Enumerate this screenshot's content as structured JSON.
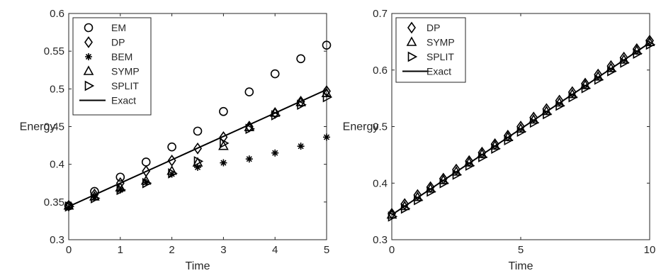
{
  "chart_data": [
    {
      "type": "scatter",
      "xlabel": "Time",
      "ylabel": "Energy",
      "xlim": [
        0,
        5
      ],
      "ylim": [
        0.3,
        0.6
      ],
      "xticks": [
        0,
        1,
        2,
        3,
        4,
        5
      ],
      "yticks": [
        0.3,
        0.35,
        0.4,
        0.45,
        0.5,
        0.55,
        0.6
      ],
      "xtick_labels": [
        "0",
        "1",
        "2",
        "3",
        "4",
        "5"
      ],
      "ytick_labels": [
        "0.3",
        "0.35",
        "0.4",
        "0.45",
        "0.5",
        "0.55",
        "0.6"
      ],
      "legend_position": "top-left",
      "grid": false,
      "series": [
        {
          "name": "EM",
          "marker": "circle",
          "x": [
            0,
            0.5,
            1.0,
            1.5,
            2.0,
            2.5,
            3.0,
            3.5,
            4.0,
            4.5,
            5.0
          ],
          "y": [
            0.345,
            0.364,
            0.383,
            0.403,
            0.423,
            0.444,
            0.47,
            0.496,
            0.52,
            0.54,
            0.558
          ]
        },
        {
          "name": "DP",
          "marker": "diamond",
          "x": [
            0,
            0.5,
            1.0,
            1.5,
            2.0,
            2.5,
            3.0,
            3.5,
            4.0,
            4.5,
            5.0
          ],
          "y": [
            0.345,
            0.36,
            0.375,
            0.391,
            0.405,
            0.421,
            0.436,
            0.45,
            0.468,
            0.483,
            0.497
          ]
        },
        {
          "name": "BEM",
          "marker": "asterisk",
          "x": [
            0,
            0.5,
            1.0,
            1.5,
            2.0,
            2.5,
            3.0,
            3.5,
            4.0,
            4.5,
            5.0
          ],
          "y": [
            0.343,
            0.356,
            0.366,
            0.376,
            0.387,
            0.396,
            0.402,
            0.407,
            0.415,
            0.424,
            0.436
          ]
        },
        {
          "name": "SYMP",
          "marker": "triangle-up",
          "x": [
            0,
            0.5,
            1.0,
            1.5,
            2.0,
            2.5,
            3.0,
            3.5,
            4.0,
            4.5,
            5.0
          ],
          "y": [
            0.345,
            0.357,
            0.369,
            0.378,
            0.391,
            0.402,
            0.424,
            0.449,
            0.468,
            0.482,
            0.494
          ]
        },
        {
          "name": "SPLIT",
          "marker": "triangle-right",
          "x": [
            0,
            0.5,
            1.0,
            1.5,
            2.0,
            2.5,
            3.0,
            3.5,
            4.0,
            4.5,
            5.0
          ],
          "y": [
            0.344,
            0.355,
            0.366,
            0.375,
            0.388,
            0.404,
            0.428,
            0.447,
            0.465,
            0.479,
            0.489
          ]
        },
        {
          "name": "Exact",
          "marker": "line",
          "x": [
            0,
            5
          ],
          "y": [
            0.344,
            0.499
          ]
        }
      ]
    },
    {
      "type": "scatter",
      "xlabel": "Time",
      "ylabel": "Energy",
      "xlim": [
        0,
        10
      ],
      "ylim": [
        0.3,
        0.7
      ],
      "xticks": [
        0,
        5,
        10
      ],
      "yticks": [
        0.3,
        0.4,
        0.5,
        0.6,
        0.7
      ],
      "xtick_labels": [
        "0",
        "5",
        "10"
      ],
      "ytick_labels": [
        "0.3",
        "0.4",
        "0.5",
        "0.6",
        "0.7"
      ],
      "legend_position": "top-left",
      "grid": false,
      "series": [
        {
          "name": "DP",
          "marker": "diamond",
          "x": [
            0,
            0.5,
            1.0,
            1.5,
            2.0,
            2.5,
            3.0,
            3.5,
            4.0,
            4.5,
            5.0,
            5.5,
            6.0,
            6.5,
            7.0,
            7.5,
            8.0,
            8.5,
            9.0,
            9.5,
            10.0
          ],
          "y": [
            0.346,
            0.363,
            0.379,
            0.393,
            0.408,
            0.424,
            0.439,
            0.454,
            0.469,
            0.484,
            0.5,
            0.516,
            0.531,
            0.546,
            0.561,
            0.576,
            0.592,
            0.607,
            0.622,
            0.637,
            0.652
          ]
        },
        {
          "name": "SYMP",
          "marker": "triangle-up",
          "x": [
            0,
            0.5,
            1.0,
            1.5,
            2.0,
            2.5,
            3.0,
            3.5,
            4.0,
            4.5,
            5.0,
            5.5,
            6.0,
            6.5,
            7.0,
            7.5,
            8.0,
            8.5,
            9.0,
            9.5,
            10.0
          ],
          "y": [
            0.344,
            0.359,
            0.375,
            0.39,
            0.405,
            0.42,
            0.436,
            0.451,
            0.466,
            0.481,
            0.496,
            0.512,
            0.527,
            0.542,
            0.557,
            0.573,
            0.588,
            0.603,
            0.618,
            0.634,
            0.649
          ]
        },
        {
          "name": "SPLIT",
          "marker": "triangle-right",
          "x": [
            0,
            0.5,
            1.0,
            1.5,
            2.0,
            2.5,
            3.0,
            3.5,
            4.0,
            4.5,
            5.0,
            5.5,
            6.0,
            6.5,
            7.0,
            7.5,
            8.0,
            8.5,
            9.0,
            9.5,
            10.0
          ],
          "y": [
            0.341,
            0.355,
            0.37,
            0.385,
            0.4,
            0.415,
            0.431,
            0.446,
            0.461,
            0.476,
            0.491,
            0.507,
            0.522,
            0.537,
            0.552,
            0.568,
            0.583,
            0.598,
            0.613,
            0.629,
            0.645
          ]
        },
        {
          "name": "Exact",
          "marker": "line",
          "x": [
            0,
            10
          ],
          "y": [
            0.344,
            0.648
          ]
        }
      ]
    }
  ]
}
